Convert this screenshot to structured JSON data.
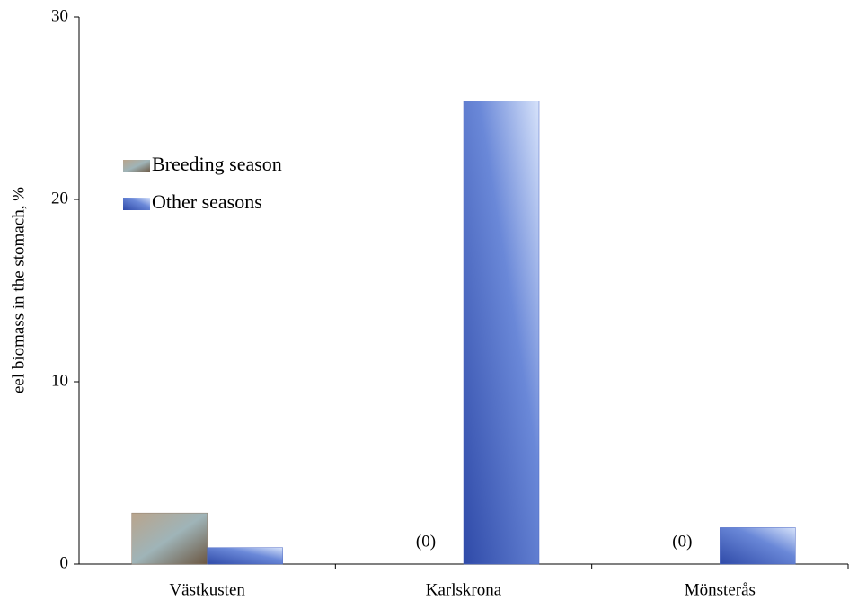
{
  "chart_data": {
    "type": "bar",
    "y_label": "eel biomass in the stomach, %",
    "categories": [
      "Västkusten",
      "Karlskrona",
      "Mönsterås"
    ],
    "series": [
      {
        "name": "Breeding season",
        "color": "#8a7866",
        "values": [
          2.8,
          0,
          0
        ],
        "value_labels": [
          null,
          "(0)",
          "(0)"
        ]
      },
      {
        "name": "Other seasons",
        "color": "#4a66c4",
        "values": [
          0.9,
          25.4,
          2.0
        ]
      }
    ],
    "ylim": [
      0,
      30
    ],
    "yticks": [
      0,
      10,
      20,
      30
    ]
  }
}
